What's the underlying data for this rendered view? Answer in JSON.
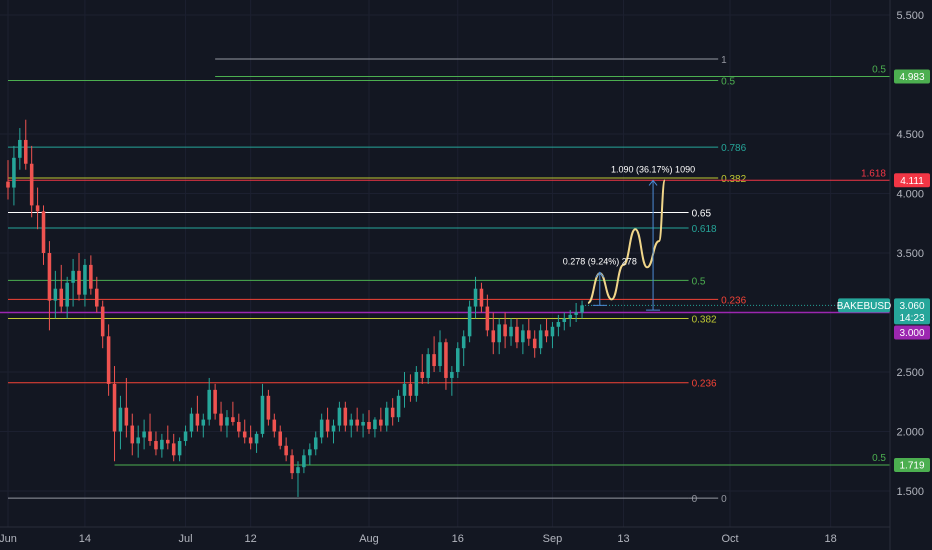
{
  "chart_data": {
    "type": "candlestick",
    "symbol": "BAKEBUSD",
    "y_ticks": [
      "5.500",
      "4.500",
      "4.000",
      "3.500",
      "3.000",
      "2.500",
      "2.000",
      "1.500"
    ],
    "x_ticks": [
      {
        "label": "Jun",
        "date": "Jun 1"
      },
      {
        "label": "14",
        "date": "Jun 14"
      },
      {
        "label": "Jul",
        "date": "Jul 1"
      },
      {
        "label": "12",
        "date": "Jul 12"
      },
      {
        "label": "Aug",
        "date": "Aug 1"
      },
      {
        "label": "16",
        "date": "Aug 16"
      },
      {
        "label": "Sep",
        "date": "Sep 1"
      },
      {
        "label": "13",
        "date": "Sep 13"
      },
      {
        "label": "Oct",
        "date": "Oct 1"
      },
      {
        "label": "18",
        "date": "Oct 18"
      }
    ],
    "ylim": [
      1.35,
      5.65
    ],
    "xlim": [
      "Jun 1",
      "Oct 28"
    ],
    "fib_levels": [
      {
        "label": "1",
        "price": 5.13,
        "color": "#9598a1",
        "from": "Jul 6",
        "to": "Sep 29",
        "label_side": "inner"
      },
      {
        "label": "0.5",
        "price": 4.95,
        "color": "#4caf50",
        "from": "Jun 1",
        "to": "Sep 29",
        "label_side": "inner"
      },
      {
        "label": "0.786",
        "price": 4.39,
        "color": "#26a69a",
        "from": "Jun 1",
        "to": "Sep 29",
        "label_side": "inner"
      },
      {
        "label": "0.382",
        "price": 4.13,
        "color": "#c0ca33",
        "from": "Jun 1",
        "to": "Sep 29",
        "label_side": "inner"
      },
      {
        "label": "0.65",
        "price": 3.84,
        "color": "#ffffff",
        "from": "Jun 1",
        "to": "Sep 24",
        "label_side": "inner"
      },
      {
        "label": "0.618",
        "price": 3.71,
        "color": "#26a69a",
        "from": "Jun 1",
        "to": "Sep 24",
        "label_side": "inner"
      },
      {
        "label": "0.5",
        "price": 3.27,
        "color": "#4caf50",
        "from": "Jun 1",
        "to": "Sep 24",
        "label_side": "inner"
      },
      {
        "label": "0.236",
        "price": 3.11,
        "color": "#f44336",
        "from": "Jun 1",
        "to": "Sep 29",
        "label_side": "inner"
      },
      {
        "label": "0.382",
        "price": 2.95,
        "color": "#c0ca33",
        "from": "Jun 1",
        "to": "Sep 24",
        "label_side": "inner"
      },
      {
        "label": "0.236",
        "price": 2.41,
        "color": "#f44336",
        "from": "Jun 1",
        "to": "Sep 24",
        "label_side": "inner"
      },
      {
        "label": "0",
        "price": 1.44,
        "color": "#9598a1",
        "from": "Jun 1",
        "to": "Sep 24",
        "label_side": "inner"
      },
      {
        "label": "0",
        "price": 1.44,
        "color": "#9598a1",
        "from": "Sep 24",
        "to": "Sep 29",
        "label_side": "inner"
      }
    ],
    "right_levels": [
      {
        "label": "0.5",
        "price": 4.983,
        "color": "#4caf50",
        "from": "Jul 6"
      },
      {
        "label": "1.618",
        "price": 4.111,
        "color": "#f23645",
        "from": "Jun 1"
      },
      {
        "label": "0.5",
        "price": 1.719,
        "color": "#4caf50",
        "from": "Jun 19"
      }
    ],
    "price_badges": [
      {
        "text": "4.983",
        "price": 4.983,
        "color": "#4caf50"
      },
      {
        "text": "4.111",
        "price": 4.111,
        "color": "#f23645"
      },
      {
        "text": "1.719",
        "price": 1.719,
        "color": "#4caf50"
      }
    ],
    "current_price": {
      "symbol": "BAKEBUSD",
      "price": "3.060",
      "countdown": "14:23",
      "color": "#26a69a"
    },
    "purple_level": {
      "price": "3.000",
      "color": "#9c27b0"
    },
    "measurements": [
      {
        "text": "0.278 (9.24%) 278",
        "from_price": 3.06,
        "to_price": 3.338,
        "date": "Sep 9"
      },
      {
        "text": "1.090 (36.17%) 1090",
        "from_price": 3.02,
        "to_price": 4.11,
        "date": "Sep 18"
      }
    ],
    "projection_path": [
      {
        "date": "Sep 7",
        "price": 3.08
      },
      {
        "date": "Sep 9",
        "price": 3.33
      },
      {
        "date": "Sep 11",
        "price": 3.11
      },
      {
        "date": "Sep 13",
        "price": 3.4
      },
      {
        "date": "Sep 15",
        "price": 3.7
      },
      {
        "date": "Sep 17",
        "price": 3.38
      },
      {
        "date": "Sep 19",
        "price": 3.6
      },
      {
        "date": "Sep 20",
        "price": 4.11
      }
    ],
    "ohlc": [
      [
        "Jun 1",
        4.1,
        4.28,
        3.95,
        4.05
      ],
      [
        "Jun 2",
        4.05,
        4.4,
        3.9,
        4.3
      ],
      [
        "Jun 3",
        4.3,
        4.55,
        4.2,
        4.45
      ],
      [
        "Jun 4",
        4.45,
        4.62,
        4.2,
        4.25
      ],
      [
        "Jun 5",
        4.25,
        4.4,
        3.8,
        3.9
      ],
      [
        "Jun 6",
        3.9,
        4.05,
        3.7,
        3.85
      ],
      [
        "Jun 7",
        3.85,
        3.9,
        3.4,
        3.5
      ],
      [
        "Jun 8",
        3.5,
        3.6,
        2.85,
        3.1
      ],
      [
        "Jun 9",
        3.1,
        3.35,
        2.95,
        3.2
      ],
      [
        "Jun 10",
        3.2,
        3.4,
        3.0,
        3.05
      ],
      [
        "Jun 11",
        3.05,
        3.3,
        2.95,
        3.25
      ],
      [
        "Jun 12",
        3.25,
        3.45,
        3.05,
        3.35
      ],
      [
        "Jun 13",
        3.35,
        3.5,
        3.1,
        3.15
      ],
      [
        "Jun 14",
        3.15,
        3.45,
        3.05,
        3.4
      ],
      [
        "Jun 15",
        3.4,
        3.48,
        3.15,
        3.2
      ],
      [
        "Jun 16",
        3.2,
        3.3,
        3.0,
        3.05
      ],
      [
        "Jun 17",
        3.05,
        3.1,
        2.7,
        2.8
      ],
      [
        "Jun 18",
        2.8,
        2.9,
        2.3,
        2.4
      ],
      [
        "Jun 19",
        2.4,
        2.55,
        1.75,
        2.0
      ],
      [
        "Jun 20",
        2.0,
        2.3,
        1.85,
        2.2
      ],
      [
        "Jun 21",
        2.2,
        2.45,
        1.95,
        2.05
      ],
      [
        "Jun 22",
        2.05,
        2.15,
        1.8,
        1.9
      ],
      [
        "Jun 23",
        1.9,
        2.05,
        1.78,
        1.95
      ],
      [
        "Jun 24",
        1.95,
        2.1,
        1.85,
        2.0
      ],
      [
        "Jun 25",
        2.0,
        2.15,
        1.88,
        1.92
      ],
      [
        "Jun 26",
        1.92,
        2.0,
        1.8,
        1.85
      ],
      [
        "Jun 27",
        1.85,
        1.98,
        1.78,
        1.93
      ],
      [
        "Jun 28",
        1.93,
        2.05,
        1.85,
        1.9
      ],
      [
        "Jun 29",
        1.9,
        1.98,
        1.75,
        1.8
      ],
      [
        "Jun 30",
        1.8,
        1.95,
        1.75,
        1.92
      ],
      [
        "Jul 1",
        1.92,
        2.05,
        1.88,
        2.0
      ],
      [
        "Jul 2",
        2.0,
        2.2,
        1.95,
        2.15
      ],
      [
        "Jul 3",
        2.15,
        2.3,
        2.0,
        2.05
      ],
      [
        "Jul 4",
        2.05,
        2.15,
        1.95,
        2.1
      ],
      [
        "Jul 5",
        2.1,
        2.45,
        2.05,
        2.35
      ],
      [
        "Jul 6",
        2.35,
        2.4,
        2.1,
        2.15
      ],
      [
        "Jul 7",
        2.15,
        2.25,
        2.0,
        2.05
      ],
      [
        "Jul 8",
        2.05,
        2.18,
        1.95,
        2.12
      ],
      [
        "Jul 9",
        2.12,
        2.25,
        2.05,
        2.08
      ],
      [
        "Jul 10",
        2.08,
        2.15,
        1.95,
        2.0
      ],
      [
        "Jul 11",
        2.0,
        2.1,
        1.9,
        1.95
      ],
      [
        "Jul 12",
        1.95,
        2.05,
        1.85,
        1.9
      ],
      [
        "Jul 13",
        1.9,
        2.0,
        1.82,
        1.98
      ],
      [
        "Jul 14",
        1.98,
        2.4,
        1.95,
        2.3
      ],
      [
        "Jul 15",
        2.3,
        2.35,
        2.05,
        2.1
      ],
      [
        "Jul 16",
        2.1,
        2.15,
        1.95,
        2.0
      ],
      [
        "Jul 17",
        2.0,
        2.05,
        1.85,
        1.88
      ],
      [
        "Jul 18",
        1.88,
        1.95,
        1.75,
        1.8
      ],
      [
        "Jul 19",
        1.8,
        1.85,
        1.6,
        1.65
      ],
      [
        "Jul 20",
        1.65,
        1.75,
        1.45,
        1.7
      ],
      [
        "Jul 21",
        1.7,
        1.85,
        1.65,
        1.8
      ],
      [
        "Jul 22",
        1.8,
        1.9,
        1.72,
        1.85
      ],
      [
        "Jul 23",
        1.85,
        2.0,
        1.8,
        1.95
      ],
      [
        "Jul 24",
        1.95,
        2.15,
        1.9,
        2.1
      ],
      [
        "Jul 25",
        2.1,
        2.2,
        1.95,
        2.0
      ],
      [
        "Jul 26",
        2.0,
        2.1,
        1.9,
        2.05
      ],
      [
        "Jul 27",
        2.05,
        2.25,
        2.0,
        2.2
      ],
      [
        "Jul 28",
        2.2,
        2.25,
        2.0,
        2.05
      ],
      [
        "Jul 29",
        2.05,
        2.15,
        1.95,
        2.1
      ],
      [
        "Jul 30",
        2.1,
        2.2,
        2.0,
        2.05
      ],
      [
        "Jul 31",
        2.05,
        2.15,
        1.95,
        2.08
      ],
      [
        "Aug 1",
        2.08,
        2.18,
        1.98,
        2.02
      ],
      [
        "Aug 2",
        2.02,
        2.12,
        1.95,
        2.1
      ],
      [
        "Aug 3",
        2.1,
        2.2,
        2.0,
        2.05
      ],
      [
        "Aug 4",
        2.05,
        2.25,
        2.0,
        2.2
      ],
      [
        "Aug 5",
        2.2,
        2.28,
        2.05,
        2.12
      ],
      [
        "Aug 6",
        2.12,
        2.35,
        2.08,
        2.3
      ],
      [
        "Aug 7",
        2.3,
        2.5,
        2.2,
        2.4
      ],
      [
        "Aug 8",
        2.4,
        2.48,
        2.25,
        2.3
      ],
      [
        "Aug 9",
        2.3,
        2.55,
        2.25,
        2.5
      ],
      [
        "Aug 10",
        2.5,
        2.65,
        2.4,
        2.45
      ],
      [
        "Aug 11",
        2.45,
        2.7,
        2.4,
        2.65
      ],
      [
        "Aug 12",
        2.65,
        2.8,
        2.5,
        2.55
      ],
      [
        "Aug 13",
        2.55,
        2.85,
        2.5,
        2.75
      ],
      [
        "Aug 14",
        2.75,
        2.78,
        2.35,
        2.45
      ],
      [
        "Aug 15",
        2.45,
        2.55,
        2.3,
        2.5
      ],
      [
        "Aug 16",
        2.5,
        2.75,
        2.45,
        2.7
      ],
      [
        "Aug 17",
        2.7,
        2.85,
        2.55,
        2.8
      ],
      [
        "Aug 18",
        2.8,
        3.1,
        2.75,
        3.05
      ],
      [
        "Aug 19",
        3.05,
        3.3,
        2.95,
        3.2
      ],
      [
        "Aug 20",
        3.2,
        3.25,
        3.0,
        3.05
      ],
      [
        "Aug 21",
        3.05,
        3.15,
        2.8,
        2.85
      ],
      [
        "Aug 22",
        2.85,
        3.0,
        2.65,
        2.75
      ],
      [
        "Aug 23",
        2.75,
        2.95,
        2.65,
        2.9
      ],
      [
        "Aug 24",
        2.9,
        3.0,
        2.7,
        2.8
      ],
      [
        "Aug 25",
        2.8,
        2.95,
        2.72,
        2.88
      ],
      [
        "Aug 26",
        2.88,
        2.95,
        2.7,
        2.75
      ],
      [
        "Aug 27",
        2.75,
        2.9,
        2.65,
        2.85
      ],
      [
        "Aug 28",
        2.85,
        2.95,
        2.72,
        2.78
      ],
      [
        "Aug 29",
        2.78,
        2.85,
        2.62,
        2.7
      ],
      [
        "Aug 30",
        2.7,
        2.9,
        2.65,
        2.85
      ],
      [
        "Aug 31",
        2.85,
        2.95,
        2.75,
        2.8
      ],
      [
        "Sep 1",
        2.8,
        2.92,
        2.7,
        2.88
      ],
      [
        "Sep 2",
        2.88,
        2.98,
        2.8,
        2.92
      ],
      [
        "Sep 3",
        2.92,
        3.0,
        2.85,
        2.95
      ],
      [
        "Sep 4",
        2.95,
        3.02,
        2.88,
        2.98
      ],
      [
        "Sep 5",
        2.98,
        3.08,
        2.92,
        3.0
      ],
      [
        "Sep 6",
        3.0,
        3.1,
        2.95,
        3.06
      ]
    ]
  }
}
